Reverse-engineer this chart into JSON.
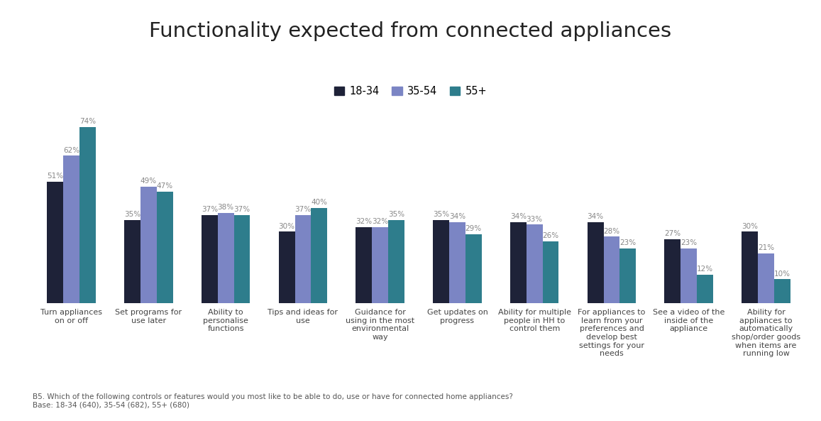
{
  "title": "Functionality expected from connected appliances",
  "categories": [
    "Turn appliances\non or off",
    "Set programs for\nuse later",
    "Ability to\npersonalise\nfunctions",
    "Tips and ideas for\nuse",
    "Guidance for\nusing in the most\nenvironmental\nway",
    "Get updates on\nprogress",
    "Ability for multiple\npeople in HH to\ncontrol them",
    "For appliances to\nlearn from your\npreferences and\ndevelop best\nsettings for your\nneeds",
    "See a video of the\ninside of the\nappliance",
    "Ability for\nappliances to\nautomatically\nshop/order goods\nwhen items are\nrunning low"
  ],
  "series": {
    "18-34": [
      51,
      35,
      37,
      30,
      32,
      35,
      34,
      34,
      27,
      30
    ],
    "35-54": [
      62,
      49,
      38,
      37,
      32,
      34,
      33,
      28,
      23,
      21
    ],
    "55+": [
      74,
      47,
      37,
      40,
      35,
      29,
      26,
      23,
      12,
      10
    ]
  },
  "colors": {
    "18-34": "#1e2238",
    "35-54": "#7b85c4",
    "55+": "#2e7d8c"
  },
  "legend_labels": [
    "18-34",
    "35-54",
    "55+"
  ],
  "footnote": "B5. Which of the following controls or features would you most like to be able to do, use or have for connected home appliances?\nBase: 18-34 (640), 35-54 (682), 55+ (680)",
  "background_color": "#ffffff",
  "label_fontsize": 7.5,
  "title_fontsize": 21,
  "tick_fontsize": 8,
  "footnote_fontsize": 7.5,
  "ylim": [
    0,
    85
  ]
}
